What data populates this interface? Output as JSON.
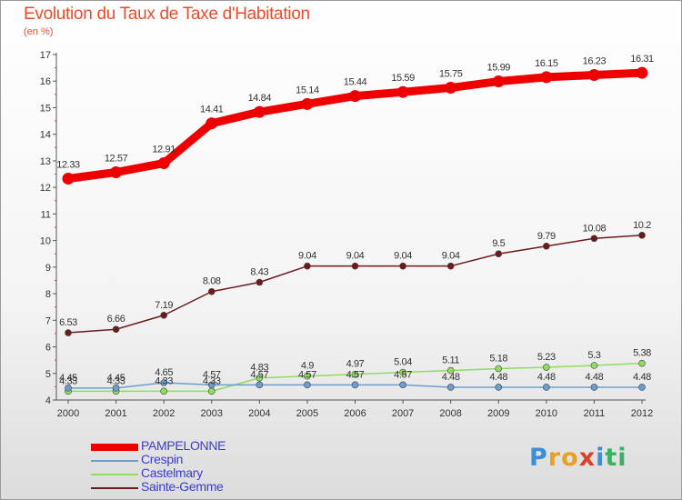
{
  "header": {
    "title": "Evolution du Taux de Taxe d'Habitation",
    "unit": "(en %)"
  },
  "logo": {
    "text": "Proxiti",
    "letters": [
      "P",
      "r",
      "o",
      "x",
      "i",
      "t",
      "i"
    ],
    "colors": [
      "#3a8fd8",
      "#e8a020",
      "#e8a020",
      "#d8402a",
      "#3a8fd8",
      "#3ab060",
      "#3ab060"
    ]
  },
  "chart_data": {
    "type": "line",
    "x": [
      2000,
      2001,
      2002,
      2003,
      2004,
      2005,
      2006,
      2007,
      2008,
      2009,
      2010,
      2011,
      2012
    ],
    "ylim": [
      4,
      17
    ],
    "yticks": [
      4,
      5,
      6,
      7,
      8,
      9,
      10,
      11,
      12,
      13,
      14,
      15,
      16,
      17
    ],
    "grid": false,
    "legend_position": "bottom-left",
    "series": [
      {
        "name": "PAMPELONNE",
        "color": "#ee0000",
        "values": [
          12.33,
          12.57,
          12.91,
          14.41,
          14.84,
          15.14,
          15.44,
          15.59,
          15.75,
          15.99,
          16.15,
          16.23,
          16.31
        ],
        "labels": [
          "12.33",
          "12.57",
          "12.91",
          "14.41",
          "14.84",
          "15.14",
          "15.44",
          "15.59",
          "15.75",
          "15.99",
          "16.15",
          "16.23",
          "16.31"
        ]
      },
      {
        "name": "Crespin",
        "color": "#6a9ed0",
        "values": [
          4.45,
          4.45,
          4.65,
          4.57,
          4.57,
          4.57,
          4.57,
          4.57,
          4.48,
          4.48,
          4.48,
          4.48,
          4.48
        ],
        "labels": [
          "4.45",
          "4.45",
          "4.65",
          "4.57",
          "4.57",
          "4.57",
          "4.57",
          "4.57",
          "4.48",
          "4.48",
          "4.48",
          "4.48",
          "4.48"
        ]
      },
      {
        "name": "Castelmary",
        "color": "#90dc60",
        "values": [
          4.33,
          4.33,
          4.33,
          4.33,
          4.83,
          4.9,
          4.97,
          5.04,
          5.11,
          5.18,
          5.23,
          5.3,
          5.38
        ],
        "labels": [
          "4.33",
          "4.33",
          "4.33",
          "4.33",
          "4.83",
          "4.9",
          "4.97",
          "5.04",
          "5.11",
          "5.18",
          "5.23",
          "5.3",
          "5.38"
        ]
      },
      {
        "name": "Sainte-Gemme",
        "color": "#6e1a1a",
        "values": [
          6.53,
          6.66,
          7.19,
          8.08,
          8.43,
          9.04,
          9.04,
          9.04,
          9.04,
          9.5,
          9.79,
          10.08,
          10.2
        ],
        "labels": [
          "6.53",
          "6.66",
          "7.19",
          "8.08",
          "8.43",
          "9.04",
          "9.04",
          "9.04",
          "9.04",
          "9.5",
          "9.79",
          "10.08",
          "10.2"
        ]
      }
    ]
  }
}
